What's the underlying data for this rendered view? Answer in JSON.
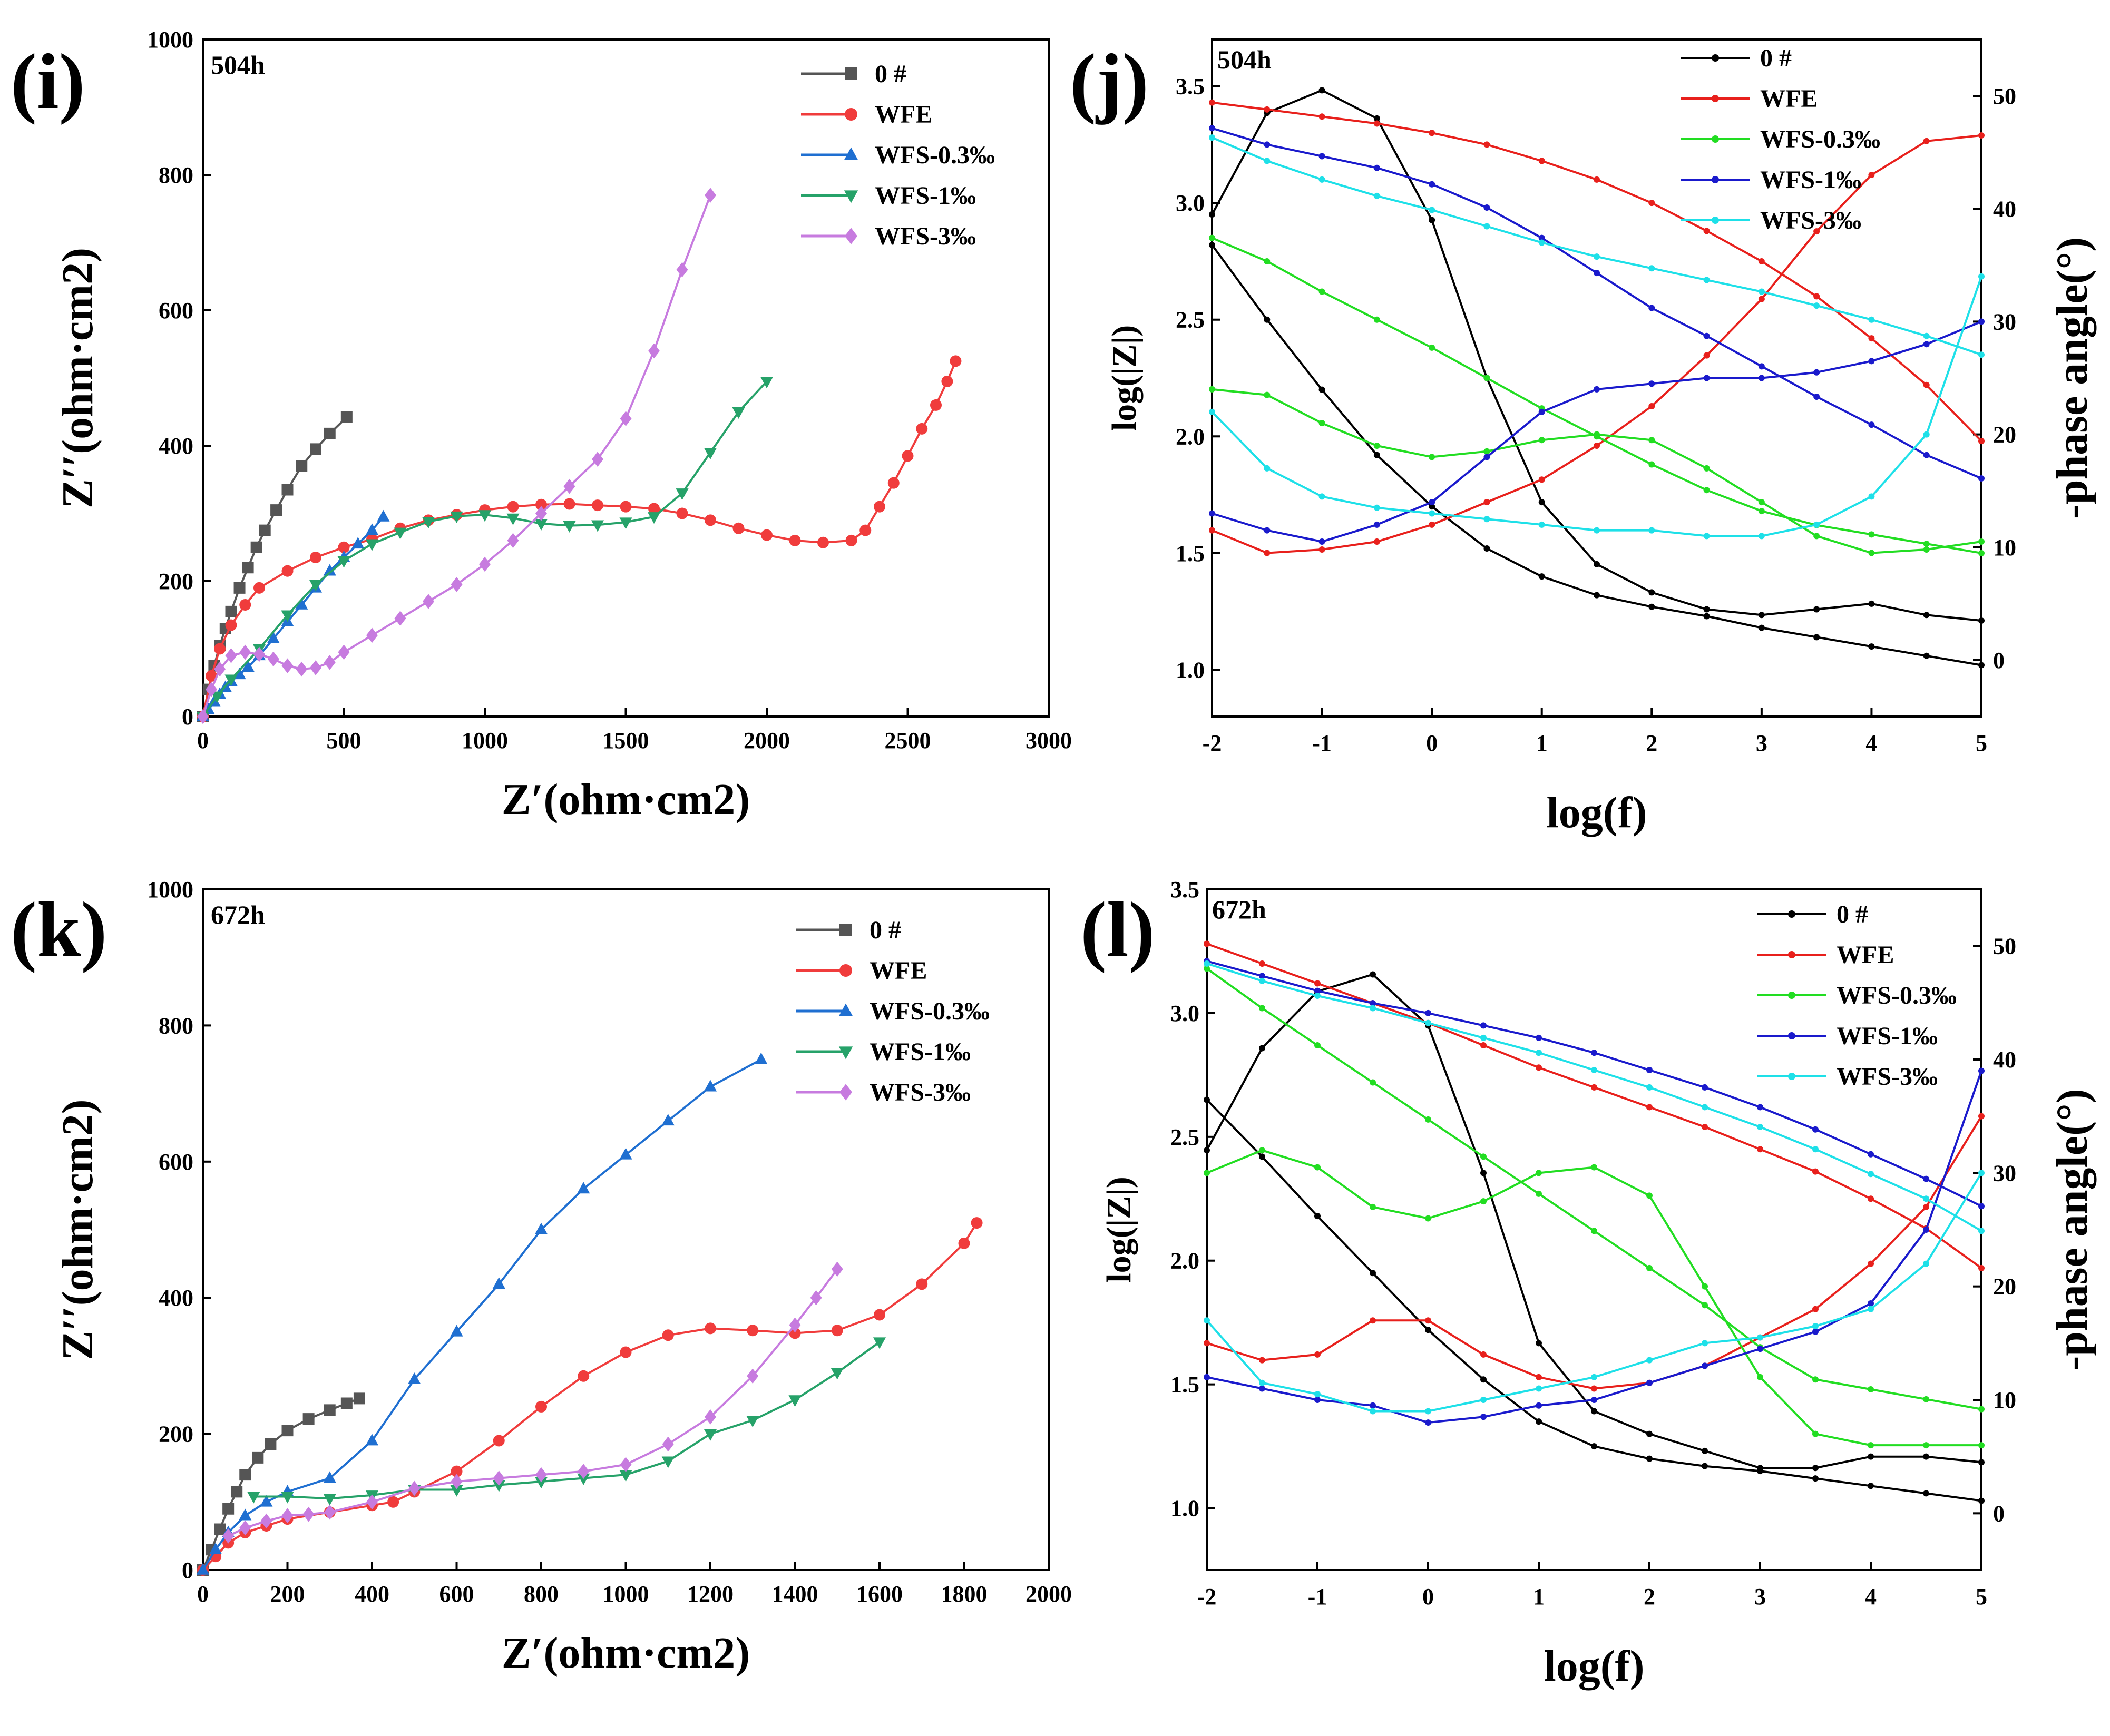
{
  "figure": {
    "panels": [
      "(i)",
      "(j)",
      "(k)",
      "(l)"
    ]
  },
  "chart_data": [
    {
      "id": "i",
      "type": "scatter",
      "panel_label": "(i)",
      "annotation": "504h",
      "title": "",
      "xlabel": "Z′(ohm·cm2)",
      "ylabel": "Z′′(ohm·cm2)",
      "xlim": [
        0,
        3000
      ],
      "ylim": [
        0,
        1000
      ],
      "xticks": [
        0,
        500,
        1000,
        1500,
        2000,
        2500,
        3000
      ],
      "yticks": [
        0,
        200,
        400,
        600,
        800,
        1000
      ],
      "legend_position": "top-right",
      "series": [
        {
          "name": "0 #",
          "color": "#555555",
          "marker": "square",
          "x": [
            0,
            20,
            40,
            60,
            80,
            100,
            130,
            160,
            190,
            220,
            260,
            300,
            350,
            400,
            450,
            510
          ],
          "y": [
            0,
            40,
            75,
            105,
            130,
            155,
            190,
            220,
            250,
            275,
            305,
            335,
            370,
            395,
            418,
            442
          ]
        },
        {
          "name": "WFE",
          "color": "#f03c3c",
          "marker": "circle",
          "x": [
            0,
            30,
            60,
            100,
            150,
            200,
            300,
            400,
            500,
            600,
            700,
            800,
            900,
            1000,
            1100,
            1200,
            1300,
            1400,
            1500,
            1600,
            1700,
            1800,
            1900,
            2000,
            2100,
            2200,
            2300,
            2350,
            2400,
            2450,
            2500,
            2550,
            2600,
            2640,
            2670
          ],
          "y": [
            0,
            60,
            100,
            135,
            165,
            190,
            215,
            235,
            250,
            262,
            278,
            290,
            298,
            305,
            310,
            313,
            314,
            312,
            310,
            307,
            300,
            290,
            278,
            268,
            260,
            257,
            260,
            275,
            310,
            345,
            385,
            425,
            460,
            495,
            525
          ]
        },
        {
          "name": "WFS-0.3‰",
          "color": "#1f6fd1",
          "marker": "triangle",
          "x": [
            0,
            20,
            40,
            60,
            80,
            100,
            130,
            160,
            200,
            250,
            300,
            350,
            400,
            450,
            500,
            550,
            600,
            640
          ],
          "y": [
            0,
            10,
            22,
            33,
            43,
            52,
            62,
            73,
            90,
            115,
            140,
            165,
            190,
            215,
            235,
            255,
            275,
            295
          ]
        },
        {
          "name": "WFS-1‰",
          "color": "#26a269",
          "marker": "triangle-down",
          "x": [
            0,
            50,
            100,
            200,
            300,
            400,
            500,
            600,
            700,
            800,
            900,
            1000,
            1100,
            1200,
            1300,
            1400,
            1500,
            1600,
            1700,
            1800,
            1900,
            2000
          ],
          "y": [
            0,
            30,
            55,
            100,
            150,
            195,
            230,
            255,
            272,
            288,
            296,
            298,
            293,
            285,
            282,
            283,
            287,
            295,
            330,
            390,
            450,
            495
          ]
        },
        {
          "name": "WFS-3‰",
          "color": "#c77bdf",
          "marker": "diamond",
          "x": [
            0,
            30,
            60,
            100,
            150,
            200,
            250,
            300,
            350,
            400,
            450,
            500,
            600,
            700,
            800,
            900,
            1000,
            1100,
            1200,
            1300,
            1400,
            1500,
            1600,
            1700,
            1800
          ],
          "y": [
            0,
            40,
            70,
            90,
            95,
            92,
            85,
            75,
            70,
            72,
            80,
            95,
            120,
            145,
            170,
            195,
            225,
            260,
            300,
            340,
            380,
            440,
            540,
            660,
            770
          ]
        }
      ]
    },
    {
      "id": "j",
      "type": "line",
      "panel_label": "(j)",
      "annotation": "504h",
      "title": "",
      "xlabel": "log(f)",
      "ylabel": "log(|Z|)",
      "y2label": "-phase angle(°)",
      "xlim": [
        -2,
        5
      ],
      "ylim": [
        0.8,
        3.7
      ],
      "y2lim": [
        -5,
        55
      ],
      "xticks": [
        -2,
        -1,
        0,
        1,
        2,
        3,
        4,
        5
      ],
      "yticks": [
        1.0,
        1.5,
        2.0,
        2.5,
        3.0,
        3.5
      ],
      "y2ticks": [
        0,
        10,
        20,
        30,
        40,
        50
      ],
      "legend_position": "top-right",
      "x": [
        -2,
        -1.5,
        -1,
        -0.5,
        0,
        0.5,
        1,
        1.5,
        2,
        2.5,
        3,
        3.5,
        4,
        4.5,
        5
      ],
      "series": [
        {
          "name": "0 #",
          "color": "#000000",
          "log_z": [
            2.82,
            2.5,
            2.2,
            1.92,
            1.7,
            1.52,
            1.4,
            1.32,
            1.27,
            1.23,
            1.18,
            1.14,
            1.1,
            1.06,
            1.02
          ],
          "phase": [
            39.5,
            48.5,
            50.5,
            48.0,
            39.0,
            25.0,
            14.0,
            8.5,
            6.0,
            4.5,
            4.0,
            4.5,
            5.0,
            4.0,
            3.5
          ]
        },
        {
          "name": "WFE",
          "color": "#e8201c",
          "log_z": [
            3.43,
            3.4,
            3.37,
            3.34,
            3.3,
            3.25,
            3.18,
            3.1,
            3.0,
            2.88,
            2.75,
            2.6,
            2.42,
            2.22,
            1.98
          ],
          "phase": [
            11.5,
            9.5,
            9.8,
            10.5,
            12.0,
            14.0,
            16.0,
            19.0,
            22.5,
            27.0,
            32.0,
            38.0,
            43.0,
            46.0,
            46.5
          ]
        },
        {
          "name": "WFS-0.3‰",
          "color": "#22dd22",
          "log_z": [
            2.85,
            2.75,
            2.62,
            2.5,
            2.38,
            2.25,
            2.12,
            2.0,
            1.88,
            1.77,
            1.68,
            1.62,
            1.58,
            1.54,
            1.5
          ],
          "phase": [
            24.0,
            23.5,
            21.0,
            19.0,
            18.0,
            18.5,
            19.5,
            20.0,
            19.5,
            17.0,
            14.0,
            11.0,
            9.5,
            9.8,
            10.5
          ]
        },
        {
          "name": "WFS-1‰",
          "color": "#1a1acc",
          "log_z": [
            3.32,
            3.25,
            3.2,
            3.15,
            3.08,
            2.98,
            2.85,
            2.7,
            2.55,
            2.43,
            2.3,
            2.17,
            2.05,
            1.92,
            1.82
          ],
          "phase": [
            13.0,
            11.5,
            10.5,
            12.0,
            14.0,
            18.0,
            22.0,
            24.0,
            24.5,
            25.0,
            25.0,
            25.5,
            26.5,
            28.0,
            30.0
          ]
        },
        {
          "name": "WFS-3‰",
          "color": "#1ee0e8",
          "log_z": [
            3.28,
            3.18,
            3.1,
            3.03,
            2.97,
            2.9,
            2.83,
            2.77,
            2.72,
            2.67,
            2.62,
            2.56,
            2.5,
            2.43,
            2.35
          ],
          "phase": [
            22.0,
            17.0,
            14.5,
            13.5,
            13.0,
            12.5,
            12.0,
            11.5,
            11.5,
            11.0,
            11.0,
            12.0,
            14.5,
            20.0,
            34.0
          ]
        }
      ]
    },
    {
      "id": "k",
      "type": "scatter",
      "panel_label": "(k)",
      "annotation": "672h",
      "title": "",
      "xlabel": "Z′(ohm·cm2)",
      "ylabel": "Z′′(ohm·cm2)",
      "xlim": [
        0,
        2000
      ],
      "ylim": [
        0,
        1000
      ],
      "xticks": [
        0,
        200,
        400,
        600,
        800,
        1000,
        1200,
        1400,
        1600,
        1800,
        2000
      ],
      "yticks": [
        0,
        200,
        400,
        600,
        800,
        1000
      ],
      "legend_position": "top-right",
      "series": [
        {
          "name": "0 #",
          "color": "#555555",
          "marker": "square",
          "x": [
            0,
            20,
            40,
            60,
            80,
            100,
            130,
            160,
            200,
            250,
            300,
            340,
            370
          ],
          "y": [
            0,
            30,
            60,
            90,
            115,
            140,
            165,
            185,
            205,
            222,
            235,
            245,
            252
          ]
        },
        {
          "name": "WFE",
          "color": "#f03c3c",
          "marker": "circle",
          "x": [
            0,
            30,
            60,
            100,
            150,
            200,
            300,
            400,
            450,
            500,
            600,
            700,
            800,
            900,
            1000,
            1100,
            1200,
            1300,
            1400,
            1500,
            1600,
            1700,
            1800,
            1830
          ],
          "y": [
            0,
            20,
            40,
            55,
            65,
            75,
            85,
            95,
            100,
            115,
            145,
            190,
            240,
            285,
            320,
            345,
            355,
            352,
            348,
            352,
            375,
            420,
            480,
            510
          ]
        },
        {
          "name": "WFS-0.3‰",
          "color": "#1f6fd1",
          "marker": "triangle",
          "x": [
            0,
            30,
            60,
            100,
            150,
            200,
            300,
            400,
            500,
            600,
            700,
            800,
            900,
            1000,
            1100,
            1200,
            1320
          ],
          "y": [
            0,
            30,
            55,
            80,
            100,
            115,
            135,
            190,
            280,
            350,
            420,
            500,
            560,
            610,
            660,
            710,
            750
          ]
        },
        {
          "name": "WFS-1‰",
          "color": "#26a269",
          "marker": "triangle-down",
          "x": [
            120,
            200,
            300,
            400,
            500,
            600,
            700,
            800,
            900,
            1000,
            1100,
            1200,
            1300,
            1400,
            1500,
            1600
          ],
          "y": [
            108,
            108,
            105,
            110,
            118,
            118,
            125,
            130,
            135,
            140,
            160,
            200,
            220,
            250,
            290,
            335
          ]
        },
        {
          "name": "WFS-3‰",
          "color": "#c77bdf",
          "marker": "diamond",
          "x": [
            60,
            100,
            150,
            200,
            250,
            300,
            400,
            500,
            600,
            700,
            800,
            900,
            1000,
            1100,
            1200,
            1300,
            1400,
            1450,
            1500
          ],
          "y": [
            50,
            62,
            72,
            80,
            82,
            85,
            100,
            120,
            130,
            135,
            140,
            145,
            155,
            185,
            225,
            285,
            360,
            400,
            442
          ]
        }
      ]
    },
    {
      "id": "l",
      "type": "line",
      "panel_label": "(l)",
      "annotation": "672h",
      "title": "",
      "xlabel": "log(f)",
      "ylabel": "log(|Z|)",
      "y2label": "-phase angle(°)",
      "xlim": [
        -2,
        5
      ],
      "ylim": [
        0.75,
        3.5
      ],
      "y2lim": [
        -5,
        55
      ],
      "xticks": [
        -2,
        -1,
        0,
        1,
        2,
        3,
        4,
        5
      ],
      "yticks": [
        1.0,
        1.5,
        2.0,
        2.5,
        3.0,
        3.5
      ],
      "y2ticks": [
        0,
        10,
        20,
        30,
        40,
        50
      ],
      "legend_position": "top-right",
      "x": [
        -2,
        -1.5,
        -1,
        -0.5,
        0,
        0.5,
        1,
        1.5,
        2,
        2.5,
        3,
        3.5,
        4,
        4.5,
        5
      ],
      "series": [
        {
          "name": "0 #",
          "color": "#000000",
          "log_z": [
            2.65,
            2.42,
            2.18,
            1.95,
            1.72,
            1.52,
            1.35,
            1.25,
            1.2,
            1.17,
            1.15,
            1.12,
            1.09,
            1.06,
            1.03
          ],
          "phase": [
            32.0,
            41.0,
            46.0,
            47.5,
            43.0,
            30.0,
            15.0,
            9.0,
            7.0,
            5.5,
            4.0,
            4.0,
            5.0,
            5.0,
            4.5
          ]
        },
        {
          "name": "WFE",
          "color": "#e8201c",
          "log_z": [
            3.28,
            3.2,
            3.12,
            3.04,
            2.96,
            2.87,
            2.78,
            2.7,
            2.62,
            2.54,
            2.45,
            2.36,
            2.25,
            2.13,
            1.97
          ],
          "phase": [
            15.0,
            13.5,
            14.0,
            17.0,
            17.0,
            14.0,
            12.0,
            11.0,
            11.5,
            13.0,
            15.5,
            18.0,
            22.0,
            27.0,
            35.0
          ]
        },
        {
          "name": "WFS-0.3‰",
          "color": "#22dd22",
          "log_z": [
            3.18,
            3.02,
            2.87,
            2.72,
            2.57,
            2.42,
            2.27,
            2.12,
            1.97,
            1.82,
            1.65,
            1.52,
            1.48,
            1.44,
            1.4
          ],
          "phase": [
            30.0,
            32.0,
            30.5,
            27.0,
            26.0,
            27.5,
            30.0,
            30.5,
            28.0,
            20.0,
            12.0,
            7.0,
            6.0,
            6.0,
            6.0
          ]
        },
        {
          "name": "WFS-1‰",
          "color": "#1a1acc",
          "log_z": [
            3.21,
            3.15,
            3.09,
            3.04,
            3.0,
            2.95,
            2.9,
            2.84,
            2.77,
            2.7,
            2.62,
            2.53,
            2.43,
            2.33,
            2.22
          ],
          "phase": [
            12.0,
            11.0,
            10.0,
            9.5,
            8.0,
            8.5,
            9.5,
            10.0,
            11.5,
            13.0,
            14.5,
            16.0,
            18.5,
            25.0,
            39.0
          ]
        },
        {
          "name": "WFS-3‰",
          "color": "#1ee0e8",
          "log_z": [
            3.2,
            3.13,
            3.07,
            3.02,
            2.96,
            2.9,
            2.84,
            2.77,
            2.7,
            2.62,
            2.54,
            2.45,
            2.35,
            2.25,
            2.12
          ],
          "phase": [
            17.0,
            11.5,
            10.5,
            9.0,
            9.0,
            10.0,
            11.0,
            12.0,
            13.5,
            15.0,
            15.5,
            16.5,
            18.0,
            22.0,
            30.0
          ]
        }
      ]
    }
  ]
}
